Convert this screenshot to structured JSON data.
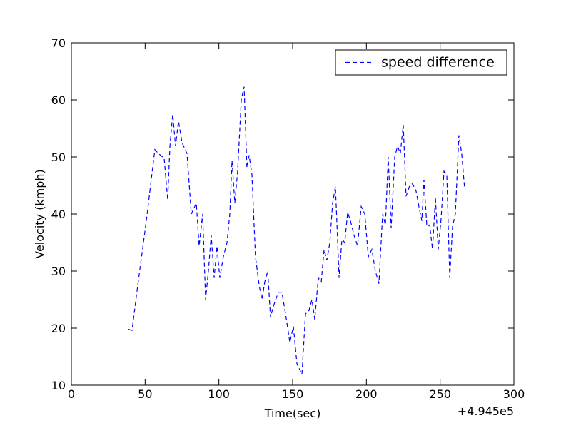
{
  "chart_data": {
    "type": "line",
    "x_label": "Time(sec)",
    "y_label": "Velocity (kmph)",
    "x_offset_label": "+4.945e5",
    "xlim": [
      0,
      300
    ],
    "xticks": [
      0,
      50,
      100,
      150,
      200,
      250,
      300
    ],
    "ylim": [
      10,
      70
    ],
    "yticks": [
      10,
      20,
      30,
      40,
      50,
      60,
      70
    ],
    "grid": false,
    "legend": "upper right",
    "series": [
      {
        "name": "speed difference",
        "color": "#0000ff",
        "dash": true,
        "x": [
          38.7,
          41.1,
          45,
          50.8,
          56.6,
          59,
          62.9,
          65.3,
          66.8,
          68.7,
          70.6,
          72.6,
          75,
          78.4,
          81.3,
          84.7,
          86.6,
          89,
          91,
          92.9,
          94.8,
          96.8,
          98.7,
          100.6,
          103,
          105.5,
          107.4,
          108.9,
          110.8,
          112.7,
          115.2,
          117.1,
          119,
          120.5,
          122.4,
          124.8,
          127.3,
          129.2,
          131.1,
          133.1,
          135,
          136.9,
          140.3,
          142.7,
          145.2,
          148.1,
          150.5,
          152.9,
          156.3,
          158.7,
          161.1,
          163.1,
          165,
          167.4,
          169.4,
          171.3,
          173.2,
          175.2,
          177.1,
          179,
          181.5,
          183.4,
          185.3,
          187.3,
          189.2,
          191.6,
          194,
          196.5,
          198.9,
          201.3,
          203.7,
          206.1,
          208.5,
          211,
          212.9,
          214.8,
          216.8,
          219.2,
          221.1,
          223,
          225,
          226.9,
          229.4,
          231.3,
          233.7,
          235.6,
          237.6,
          239,
          241,
          242.9,
          244.8,
          246.8,
          248.7,
          250.6,
          252.6,
          254.5,
          256.5,
          258.4,
          260.3,
          262.7,
          264.6,
          266.6
        ],
        "values": [
          19.8,
          19.6,
          27.5,
          38.8,
          51.3,
          50.6,
          49.8,
          42.5,
          51.9,
          57.5,
          51.9,
          56.3,
          52.5,
          50.6,
          40,
          41.9,
          34.4,
          40,
          25,
          30,
          36.3,
          28.8,
          34.4,
          28.8,
          32.5,
          35,
          40,
          49.4,
          41.9,
          47.5,
          60,
          62.3,
          48.1,
          50.3,
          46.9,
          32.5,
          27.5,
          25,
          28.1,
          30,
          21.9,
          23.8,
          26.3,
          26.3,
          22.5,
          17.5,
          20.3,
          13.8,
          11.9,
          22.5,
          23.1,
          25,
          21.5,
          28.8,
          28.1,
          33.8,
          31.9,
          35,
          41.9,
          44.8,
          28.8,
          35.6,
          35,
          40.3,
          38.8,
          36.3,
          34.4,
          41.3,
          40,
          32.5,
          33.8,
          30,
          27.8,
          40,
          38.1,
          50,
          37.5,
          50,
          51.9,
          50.6,
          55.6,
          43.1,
          45,
          45.3,
          44,
          41.3,
          38.8,
          46,
          37.8,
          38.1,
          33.8,
          42.8,
          33.8,
          39,
          47.5,
          46.9,
          28.8,
          37.8,
          40,
          53.8,
          50.6,
          44.4
        ]
      }
    ]
  }
}
